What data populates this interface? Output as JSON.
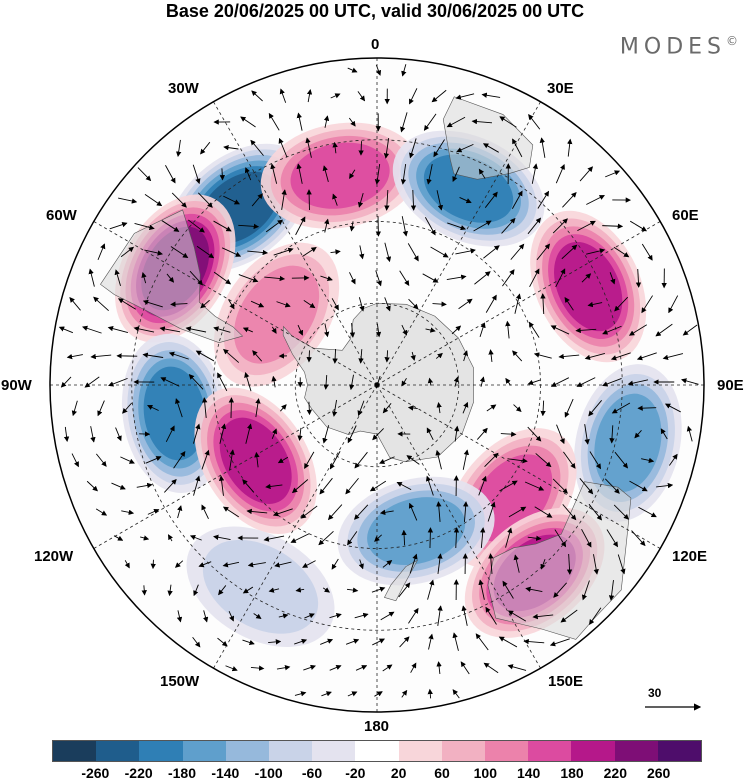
{
  "title": "Base 20/06/2025 00 UTC, valid 30/06/2025 00 UTC",
  "logo": "MODES",
  "logo_mark": "©",
  "lon_labels": {
    "n0": "0",
    "e30": "30E",
    "e60": "60E",
    "e90": "90E",
    "e120": "120E",
    "e150": "150E",
    "s180": "180",
    "w150": "150W",
    "w120": "120W",
    "w90": "90W",
    "w60": "60W",
    "w30": "30W"
  },
  "vector_scale_label": "30",
  "colorbar": {
    "colors": [
      "#1a3d5c",
      "#1f5d8c",
      "#2f7fb5",
      "#5f9fcc",
      "#96b9dc",
      "#c9d3e8",
      "#e4e3ef",
      "#ffffff",
      "#f8d6da",
      "#f2b1c2",
      "#ec82ab",
      "#dc4ba0",
      "#b5188a",
      "#7e0e76",
      "#4e0d6b"
    ],
    "ticks": [
      "-260",
      "-220",
      "-180",
      "-140",
      "-100",
      "-60",
      "-20",
      "20",
      "60",
      "100",
      "140",
      "180",
      "220",
      "260"
    ]
  },
  "anomalies": [
    {
      "kind": "neg",
      "lon": -38,
      "lat": -35,
      "value": -260
    },
    {
      "kind": "pos",
      "lon": -10,
      "lat": -38,
      "value": 140
    },
    {
      "kind": "neg",
      "lon": 25,
      "lat": -37,
      "value": -220
    },
    {
      "kind": "pos",
      "lon": 65,
      "lat": -33,
      "value": 200
    },
    {
      "kind": "pos",
      "lon": -60,
      "lat": -33,
      "value": 240
    },
    {
      "kind": "pos",
      "lon": -55,
      "lat": -60,
      "value": 100
    },
    {
      "kind": "neg",
      "lon": -98,
      "lat": -40,
      "value": -200
    },
    {
      "kind": "neg",
      "lon": 103,
      "lat": -27,
      "value": -160
    },
    {
      "kind": "pos",
      "lon": -122,
      "lat": -55,
      "value": 180
    },
    {
      "kind": "pos",
      "lon": 130,
      "lat": -47,
      "value": 140
    },
    {
      "kind": "neg",
      "lon": 165,
      "lat": -53,
      "value": -160
    },
    {
      "kind": "pos",
      "lon": 140,
      "lat": -30,
      "value": 200
    },
    {
      "kind": "neg",
      "lon": -150,
      "lat": -33,
      "value": -100
    }
  ]
}
